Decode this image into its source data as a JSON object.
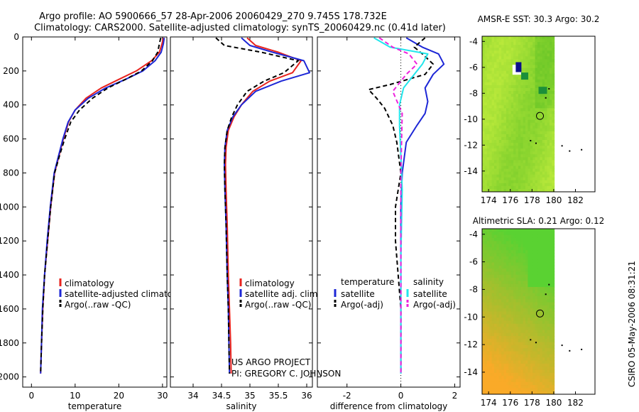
{
  "header": {
    "title_line1": "Argo profile: AO 5900666_57 28-Apr-2006 20060429_270 9.745S 178.732E",
    "title_line2": "Climatology: CARS2000. Satellite-adjusted climatology: synTS_20060429.nc (0.41d later)"
  },
  "credits": {
    "line1": "US ARGO PROJECT",
    "line2": "PI: GREGORY C. JOHNSON",
    "timestamp": "CSIRO 05-May-2006 08:31:21"
  },
  "colors": {
    "climatology": "#e8231e",
    "satellite": "#1d27d6",
    "argo": "#000000",
    "cyan": "#22e6ec",
    "magenta": "#ee22dd"
  },
  "chart_data": [
    {
      "type": "line",
      "id": "temperature",
      "xlabel": "temperature",
      "xlim": [
        -2,
        31
      ],
      "ylim": [
        0,
        2060
      ],
      "xticks": [
        0,
        10,
        20,
        30
      ],
      "yticks": [
        0,
        200,
        400,
        600,
        800,
        1000,
        1200,
        1400,
        1600,
        1800,
        2000
      ],
      "legend": [
        "climatology",
        "satellite-adjusted climatology",
        "Argo(..raw -QC)"
      ],
      "series": [
        {
          "name": "climatology",
          "color": "#e8231e",
          "style": "solid",
          "x": [
            30.2,
            29.9,
            29.3,
            27.5,
            24.0,
            20.0,
            16.0,
            12.5,
            10.0,
            8.5,
            7.3,
            6.3,
            5.3,
            4.4,
            3.7,
            3.0,
            2.6,
            2.3,
            2.1
          ],
          "depth": [
            5,
            40,
            90,
            140,
            200,
            250,
            300,
            360,
            430,
            500,
            600,
            700,
            800,
            1000,
            1200,
            1400,
            1600,
            1800,
            1980
          ]
        },
        {
          "name": "satellite-adjusted climatology",
          "color": "#1d27d6",
          "style": "solid",
          "x": [
            30.4,
            30.2,
            29.7,
            28.3,
            25.5,
            21.5,
            17.0,
            13.0,
            10.0,
            8.4,
            7.2,
            6.2,
            5.2,
            4.3,
            3.6,
            3.0,
            2.5,
            2.3,
            2.1
          ],
          "depth": [
            5,
            40,
            90,
            140,
            200,
            250,
            300,
            360,
            430,
            500,
            600,
            700,
            800,
            1000,
            1200,
            1400,
            1600,
            1800,
            1980
          ]
        },
        {
          "name": "Argo(..raw -QC)",
          "color": "#000000",
          "style": "dashed",
          "x": [
            29.6,
            29.3,
            28.9,
            27.7,
            25.2,
            21.5,
            17.5,
            14.0,
            11.0,
            9.0,
            7.6,
            6.4,
            5.3,
            4.4,
            3.7,
            3.0,
            2.6,
            2.3,
            2.1
          ],
          "depth": [
            5,
            40,
            90,
            140,
            200,
            250,
            300,
            360,
            430,
            500,
            600,
            700,
            800,
            1000,
            1200,
            1400,
            1600,
            1800,
            1980
          ]
        }
      ]
    },
    {
      "type": "line",
      "id": "salinity",
      "xlabel": "salinity",
      "xlim": [
        33.6,
        36.1
      ],
      "ylim": [
        0,
        2060
      ],
      "xticks": [
        34,
        34.5,
        35,
        35.5,
        36
      ],
      "xtick_labels": [
        "34",
        "34.5",
        "35",
        "35.5",
        "36"
      ],
      "legend": [
        "climatology",
        "satellite adj. clim.",
        "Argo(..raw -QC)"
      ],
      "series": [
        {
          "name": "climatology",
          "color": "#e8231e",
          "style": "solid",
          "x": [
            34.95,
            35.1,
            35.5,
            35.9,
            35.75,
            35.35,
            35.05,
            34.85,
            34.72,
            34.62,
            34.58,
            34.57,
            34.58,
            34.6,
            34.62,
            34.64,
            34.66,
            34.67
          ],
          "depth": [
            5,
            50,
            90,
            140,
            210,
            260,
            320,
            400,
            470,
            550,
            650,
            750,
            900,
            1100,
            1400,
            1600,
            1800,
            1980
          ]
        },
        {
          "name": "satellite adj. clim.",
          "color": "#1d27d6",
          "style": "solid",
          "x": [
            34.85,
            35.0,
            35.4,
            35.95,
            36.05,
            35.55,
            35.1,
            34.85,
            34.7,
            34.6,
            34.56,
            34.55,
            34.56,
            34.58,
            34.6,
            34.62,
            34.63,
            34.64
          ],
          "depth": [
            5,
            50,
            90,
            140,
            210,
            260,
            320,
            400,
            470,
            550,
            650,
            750,
            900,
            1100,
            1400,
            1600,
            1800,
            1980
          ]
        },
        {
          "name": "Argo(..raw -QC)",
          "color": "#000000",
          "style": "dashed",
          "x": [
            34.4,
            34.55,
            35.2,
            35.85,
            35.6,
            35.25,
            34.95,
            34.78,
            34.68,
            34.6,
            34.56,
            34.55,
            34.56,
            34.58,
            34.6,
            34.62,
            34.63,
            34.64
          ],
          "depth": [
            5,
            50,
            90,
            140,
            210,
            260,
            320,
            400,
            470,
            550,
            650,
            750,
            900,
            1100,
            1400,
            1600,
            1800,
            1980
          ]
        }
      ]
    },
    {
      "type": "line",
      "id": "difference",
      "xlabel": "difference from climatology",
      "xlim": [
        -3.1,
        2.2
      ],
      "ylim": [
        0,
        2060
      ],
      "xticks": [
        -2,
        0,
        2
      ],
      "legend_headers": [
        "temperature",
        "salinity"
      ],
      "legend": [
        [
          "satellite",
          "Argo(-adj)"
        ],
        [
          "satellite",
          "Argo(-adj)"
        ]
      ],
      "series": [
        {
          "name": "temperature satellite",
          "color": "#1d27d6",
          "style": "solid",
          "x": [
            0.2,
            0.8,
            1.4,
            1.6,
            1.2,
            0.9,
            1.0,
            0.9,
            0.6,
            0.2,
            0.05,
            0.0,
            0.0,
            0.0,
            0.0
          ],
          "depth": [
            5,
            60,
            100,
            160,
            220,
            300,
            380,
            450,
            520,
            620,
            800,
            1000,
            1300,
            1600,
            1980
          ]
        },
        {
          "name": "temperature Argo(-adj)",
          "color": "#000000",
          "style": "dashed",
          "x": [
            0.9,
            0.5,
            0.8,
            1.2,
            0.9,
            -0.4,
            -1.2,
            -0.9,
            -0.6,
            -0.3,
            -0.15,
            0.0,
            -0.2,
            -0.2,
            0.0,
            0.0
          ],
          "depth": [
            5,
            60,
            100,
            160,
            220,
            280,
            310,
            360,
            420,
            520,
            620,
            800,
            1000,
            1200,
            1600,
            1980
          ]
        },
        {
          "name": "salinity satellite",
          "color": "#22e6ec",
          "style": "solid",
          "x": [
            -1.0,
            -0.4,
            1.0,
            0.8,
            0.1,
            -0.05,
            -0.05,
            0.0,
            0.05,
            0.0,
            0.0
          ],
          "depth": [
            5,
            60,
            100,
            160,
            300,
            400,
            520,
            700,
            900,
            1300,
            1980
          ]
        },
        {
          "name": "salinity Argo(-adj)",
          "color": "#ee22dd",
          "style": "dashed",
          "x": [
            -0.8,
            -0.3,
            0.3,
            0.6,
            0.2,
            -0.3,
            0.05,
            0.0,
            0.0
          ],
          "depth": [
            5,
            60,
            100,
            160,
            220,
            320,
            450,
            800,
            1980
          ]
        }
      ]
    },
    {
      "type": "heatmap",
      "id": "sst",
      "title": "AMSR-E SST: 30.3 Argo: 30.2",
      "xlim": [
        173.4,
        180.05
      ],
      "axis_xlim": [
        173.4,
        183.8
      ],
      "ylim": [
        -15.6,
        -3.6
      ],
      "xticks": [
        174,
        176,
        178,
        180,
        182
      ],
      "yticks": [
        -4,
        -6,
        -8,
        -10,
        -12,
        -14
      ],
      "argo_position": [
        178.732,
        -9.745
      ]
    },
    {
      "type": "heatmap",
      "id": "sla",
      "title": "Altimetric SLA: 0.21 Argo: 0.12",
      "xlim": [
        173.4,
        180.05
      ],
      "axis_xlim": [
        173.4,
        183.8
      ],
      "ylim": [
        -15.6,
        -3.6
      ],
      "xticks": [
        174,
        176,
        178,
        180,
        182
      ],
      "yticks": [
        -4,
        -6,
        -8,
        -10,
        -12,
        -14
      ],
      "argo_position": [
        178.732,
        -9.745
      ]
    }
  ]
}
